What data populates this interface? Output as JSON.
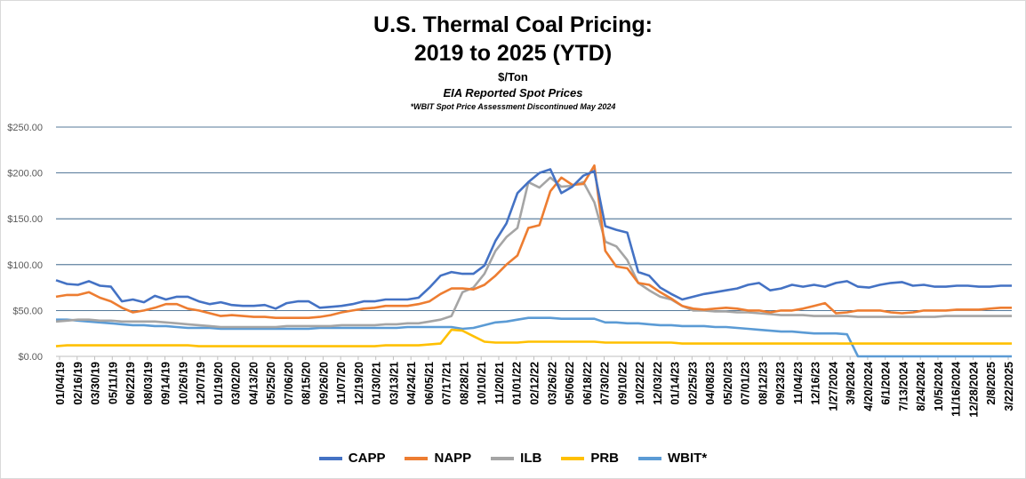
{
  "chart_data": {
    "type": "line",
    "title": "U.S. Thermal Coal Pricing:",
    "title_line2": "2019 to 2025 (YTD)",
    "subtitle": "$/Ton",
    "subtitle2": "EIA Reported Spot Prices",
    "note": "*WBIT Spot Price Assessment Discontinued May 2024",
    "ylim": [
      0,
      250
    ],
    "y_ticks": [
      "$0.00",
      "$50.00",
      "$100.00",
      "$150.00",
      "$200.00",
      "$250.00"
    ],
    "y_tick_values": [
      0,
      50,
      100,
      150,
      200,
      250
    ],
    "grid": true,
    "legend_position": "bottom",
    "x_tick_labels": [
      "01/04/19",
      "02/16/19",
      "03/30/19",
      "05/11/19",
      "06/22/19",
      "08/03/19",
      "09/14/19",
      "10/26/19",
      "12/07/19",
      "01/19/20",
      "03/02/20",
      "04/13/20",
      "05/25/20",
      "07/06/20",
      "08/15/20",
      "09/26/20",
      "11/07/20",
      "12/19/20",
      "01/30/21",
      "03/13/21",
      "04/24/21",
      "06/05/21",
      "07/17/21",
      "08/28/21",
      "10/10/21",
      "11/20/21",
      "01/01/22",
      "02/12/22",
      "03/26/22",
      "05/06/22",
      "06/18/22",
      "07/30/22",
      "09/10/22",
      "10/22/22",
      "12/03/22",
      "01/14/23",
      "02/25/23",
      "04/08/23",
      "05/20/23",
      "07/01/23",
      "08/12/23",
      "09/23/23",
      "11/04/23",
      "12/16/23",
      "1/27/2024",
      "3/9/2024",
      "4/20/2024",
      "6/1/2024",
      "7/13/2024",
      "8/24/2024",
      "10/5/2024",
      "11/16/2024",
      "12/28/2024",
      "2/8/2025",
      "3/22/2025"
    ],
    "series": [
      {
        "name": "CAPP",
        "color": "#4472C4",
        "values": [
          83,
          79,
          78,
          82,
          77,
          76,
          60,
          62,
          59,
          66,
          62,
          65,
          65,
          60,
          57,
          59,
          56,
          55,
          55,
          56,
          52,
          58,
          60,
          60,
          53,
          54,
          55,
          57,
          60,
          60,
          62,
          62,
          62,
          64,
          75,
          88,
          92,
          90,
          90,
          99,
          126,
          145,
          178,
          190,
          200,
          204,
          178,
          185,
          197,
          202,
          142,
          138,
          135,
          92,
          88,
          75,
          68,
          62,
          65,
          68,
          70,
          72,
          74,
          78,
          80,
          72,
          74,
          78,
          76,
          78,
          76,
          80,
          82,
          76,
          75,
          78,
          80,
          81,
          77,
          78,
          76,
          76,
          77,
          77,
          76,
          76,
          77,
          77
        ]
      },
      {
        "name": "NAPP",
        "color": "#ED7D31",
        "values": [
          65,
          67,
          67,
          70,
          64,
          60,
          53,
          48,
          50,
          53,
          57,
          57,
          52,
          50,
          47,
          44,
          45,
          44,
          43,
          43,
          42,
          42,
          42,
          42,
          43,
          45,
          48,
          50,
          52,
          53,
          55,
          55,
          55,
          57,
          60,
          68,
          74,
          74,
          73,
          78,
          88,
          100,
          110,
          140,
          143,
          180,
          195,
          187,
          188,
          208,
          115,
          98,
          96,
          80,
          78,
          70,
          63,
          55,
          52,
          51,
          52,
          53,
          52,
          50,
          50,
          48,
          50,
          50,
          52,
          55,
          58,
          47,
          48,
          50,
          50,
          50,
          48,
          47,
          48,
          50,
          50,
          50,
          51,
          51,
          51,
          52,
          53,
          53
        ]
      },
      {
        "name": "ILB",
        "color": "#A5A5A5",
        "values": [
          38,
          39,
          40,
          40,
          39,
          39,
          38,
          38,
          38,
          38,
          37,
          36,
          35,
          34,
          33,
          32,
          32,
          32,
          32,
          32,
          32,
          33,
          33,
          33,
          33,
          33,
          34,
          34,
          34,
          34,
          35,
          35,
          36,
          36,
          38,
          40,
          44,
          70,
          75,
          90,
          115,
          130,
          140,
          190,
          184,
          195,
          185,
          186,
          190,
          168,
          125,
          120,
          105,
          80,
          72,
          65,
          62,
          55,
          50,
          50,
          49,
          49,
          48,
          48,
          47,
          46,
          45,
          45,
          45,
          44,
          44,
          44,
          44,
          43,
          43,
          43,
          43,
          43,
          43,
          43,
          43,
          44,
          44,
          44,
          44,
          44,
          44,
          44
        ]
      },
      {
        "name": "PRB",
        "color": "#FFC000",
        "values": [
          11,
          12,
          12,
          12,
          12,
          12,
          12,
          12,
          12,
          12,
          12,
          12,
          12,
          11,
          11,
          11,
          11,
          11,
          11,
          11,
          11,
          11,
          11,
          11,
          11,
          11,
          11,
          11,
          11,
          11,
          12,
          12,
          12,
          12,
          13,
          14,
          29,
          28,
          22,
          16,
          15,
          15,
          15,
          16,
          16,
          16,
          16,
          16,
          16,
          16,
          15,
          15,
          15,
          15,
          15,
          15,
          15,
          14,
          14,
          14,
          14,
          14,
          14,
          14,
          14,
          14,
          14,
          14,
          14,
          14,
          14,
          14,
          14,
          14,
          14,
          14,
          14,
          14,
          14,
          14,
          14,
          14,
          14,
          14,
          14,
          14,
          14,
          14
        ]
      },
      {
        "name": "WBIT*",
        "color": "#5B9BD5",
        "values": [
          40,
          40,
          39,
          38,
          37,
          36,
          35,
          34,
          34,
          33,
          33,
          32,
          31,
          31,
          31,
          30,
          30,
          30,
          30,
          30,
          30,
          30,
          30,
          30,
          31,
          31,
          31,
          31,
          31,
          31,
          31,
          31,
          32,
          32,
          32,
          32,
          32,
          30,
          31,
          34,
          37,
          38,
          40,
          42,
          42,
          42,
          41,
          41,
          41,
          41,
          37,
          37,
          36,
          36,
          35,
          34,
          34,
          33,
          33,
          33,
          32,
          32,
          31,
          30,
          29,
          28,
          27,
          27,
          26,
          25,
          25,
          25,
          24,
          0,
          0,
          0,
          0,
          0,
          0,
          0,
          0,
          0,
          0,
          0,
          0,
          0,
          0,
          0
        ]
      }
    ]
  }
}
